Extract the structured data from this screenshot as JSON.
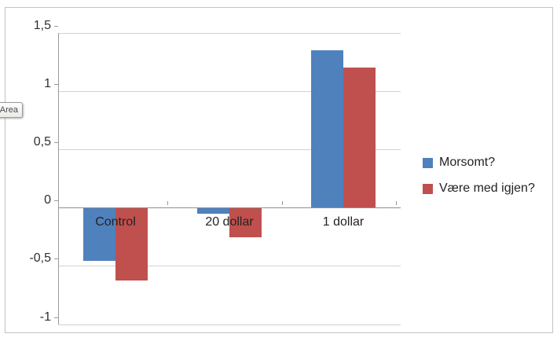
{
  "tooltip": {
    "label": "Area"
  },
  "colors": {
    "series1": "#4f81bd",
    "series2": "#c0504d",
    "gridline": "#d2d2d2",
    "axis": "#8f8f8f",
    "text": "#232323",
    "frame_border": "#c3c3c3"
  },
  "chart_data": {
    "type": "bar",
    "categories": [
      "Control",
      "20 dollar",
      "1 dollar"
    ],
    "series": [
      {
        "name": "Morsomt?",
        "color": "#4f81bd",
        "values": [
          -0.45,
          -0.05,
          1.35
        ]
      },
      {
        "name": "Være med igjen?",
        "color": "#c0504d",
        "values": [
          -0.62,
          -0.25,
          1.2
        ]
      }
    ],
    "title": "",
    "xlabel": "",
    "ylabel": "",
    "ylim": [
      -1,
      1.5
    ],
    "ytick_interval": 0.5,
    "ytick_labels": [
      "1,5",
      "1",
      "0,5",
      "0",
      "-0,5",
      "-1"
    ],
    "grid": true,
    "legend_position": "right",
    "decimal_separator": ","
  }
}
